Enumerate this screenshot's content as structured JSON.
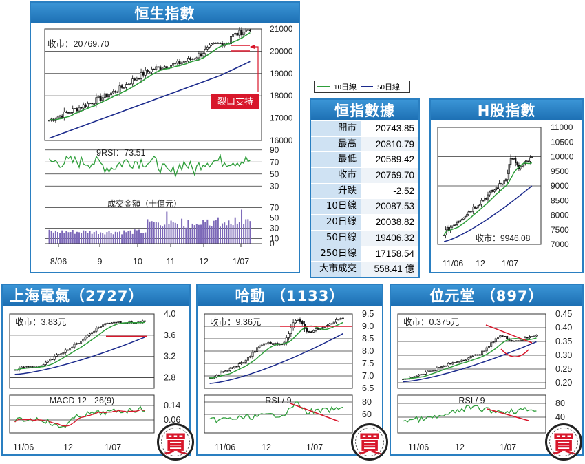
{
  "hsi": {
    "title": "恒生指數",
    "close_label": "收市：20769.70",
    "rsi_label": "9RSI：73.51",
    "turnover_label": "成交金額（十億元）",
    "annotation": "裂口支持",
    "price_ticks": [
      "21000",
      "20000",
      "19000",
      "18000",
      "17000",
      "16000"
    ],
    "rsi_ticks": [
      "90",
      "70",
      "50",
      "30"
    ],
    "vol_ticks": [
      "70",
      "50",
      "30",
      "10",
      "0"
    ],
    "x_ticks": [
      "8/06",
      "9",
      "10",
      "11",
      "12",
      "1/07"
    ]
  },
  "legend": {
    "ma10": "10日線",
    "ma50": "50日線"
  },
  "stats": {
    "title": "恒指數據",
    "rows": [
      {
        "k": "開市",
        "v": "20743.85"
      },
      {
        "k": "最高",
        "v": "20810.79"
      },
      {
        "k": "最低",
        "v": "20589.42"
      },
      {
        "k": "收市",
        "v": "20769.70"
      },
      {
        "k": "升跌",
        "v": "-2.52"
      },
      {
        "k": "10日線",
        "v": "20087.53"
      },
      {
        "k": "20日線",
        "v": "20038.82"
      },
      {
        "k": "50日線",
        "v": "19406.32"
      },
      {
        "k": "250日線",
        "v": "17158.54"
      },
      {
        "k": "大市成交",
        "v": "558.41 億"
      }
    ]
  },
  "hshare": {
    "title": "H股指數",
    "close_label": "收市：9946.08",
    "price_ticks": [
      "11000",
      "10500",
      "10000",
      "9500",
      "9000",
      "8500",
      "8000",
      "7500",
      "7000"
    ],
    "x_ticks": [
      "11/06",
      "12",
      "1/07"
    ]
  },
  "sh_electric": {
    "title": "上海電氣（2727）",
    "close_label": "收市：3.83元",
    "sub_label": "MACD 12 - 26(9)",
    "price_ticks": [
      "4.0",
      "3.6",
      "3.2",
      "2.8"
    ],
    "sub_ticks": [
      "0.14",
      "0.06"
    ],
    "x_ticks": [
      "11/06",
      "12",
      "1/07"
    ],
    "buy": "買"
  },
  "hutchison": {
    "title": "哈動 （1133）",
    "close_label": "收市：9.36元",
    "sub_label": "RSI / 9",
    "price_ticks": [
      "9.5",
      "9.0",
      "8.5",
      "8.0",
      "7.5",
      "7.0",
      "6.5"
    ],
    "sub_ticks": [
      "80",
      "60"
    ],
    "x_ticks": [
      "11/06",
      "12",
      "1/07"
    ],
    "buy": "買"
  },
  "ptt": {
    "title": "位元堂 （897）",
    "close_label": "收市：0.375元",
    "sub_label": "RSI / 9",
    "price_ticks": [
      "0.45",
      "0.40",
      "0.35",
      "0.30",
      "0.25",
      "0.20"
    ],
    "sub_ticks": [
      "80",
      "40"
    ],
    "x_ticks": [
      "11/06",
      "12",
      "1/07"
    ],
    "buy": "買"
  },
  "chart_data": [
    {
      "type": "line",
      "title": "恒生指數",
      "x": [
        "8/06",
        "9",
        "10",
        "11",
        "12",
        "1/07"
      ],
      "series": [
        {
          "name": "10日線",
          "values": [
            17000,
            17300,
            17900,
            18700,
            19300,
            20087.53
          ]
        },
        {
          "name": "50日線",
          "values": [
            16100,
            16700,
            17300,
            17900,
            18500,
            19406.32
          ]
        }
      ],
      "ylim": [
        16000,
        21000
      ]
    },
    {
      "type": "line",
      "title": "H股指數",
      "x": [
        "11/06",
        "12",
        "1/07"
      ],
      "series": [
        {
          "name": "10日線",
          "values": [
            7600,
            8500,
            9900
          ]
        },
        {
          "name": "50日線",
          "values": [
            7100,
            7700,
            8900
          ]
        }
      ],
      "ylim": [
        7000,
        11000
      ]
    },
    {
      "type": "line",
      "title": "上海電氣（2727）",
      "x": [
        "11/06",
        "12",
        "1/07"
      ],
      "series": [
        {
          "name": "10日線",
          "values": [
            2.9,
            2.9,
            3.5
          ]
        }
      ],
      "ylim": [
        2.6,
        4.0
      ]
    },
    {
      "type": "line",
      "title": "哈動 （1133）",
      "x": [
        "11/06",
        "12",
        "1/07"
      ],
      "series": [
        {
          "name": "10日線",
          "values": [
            6.8,
            7.4,
            8.4
          ]
        }
      ],
      "ylim": [
        6.5,
        9.5
      ]
    },
    {
      "type": "line",
      "title": "位元堂 （897）",
      "x": [
        "11/06",
        "12",
        "1/07"
      ],
      "series": [
        {
          "name": "10日線",
          "values": [
            0.21,
            0.26,
            0.37
          ]
        }
      ],
      "ylim": [
        0.2,
        0.45
      ]
    }
  ]
}
